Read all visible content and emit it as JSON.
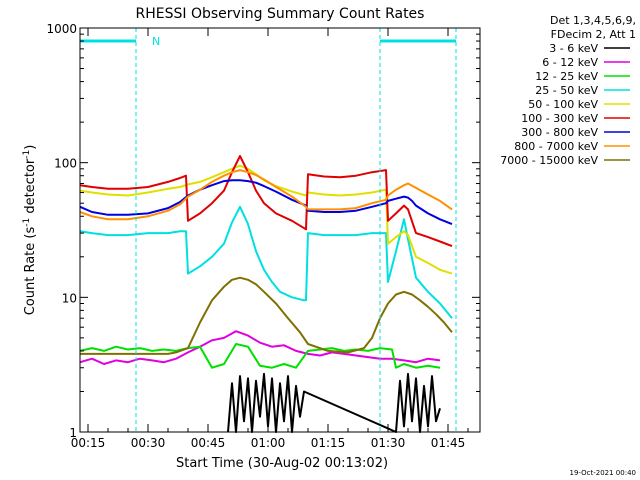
{
  "chart_data": {
    "type": "line",
    "title": "RHESSI Observing Summary Count Rates",
    "xlabel": "Start Time (30-Aug-02 00:13:02)",
    "ylabel_main": "Count Rate (s",
    "ylabel_sup1": "-1",
    "ylabel_mid": " detector",
    "ylabel_sup2": "-1",
    "ylabel_end": ")",
    "yscale": "log",
    "ylim": [
      1,
      1000
    ],
    "xlim": [
      "00:13",
      "01:53"
    ],
    "grid": false,
    "legend_position": "top-right outside",
    "x_ticks": [
      "00:15",
      "00:30",
      "00:45",
      "01:00",
      "01:15",
      "01:30",
      "01:45"
    ],
    "x_tick_minutes": [
      15,
      30,
      45,
      60,
      75,
      90,
      105
    ],
    "y_ticks": [
      "1",
      "10",
      "100",
      "1000"
    ],
    "y_tick_values": [
      1,
      10,
      100,
      1000
    ],
    "legend_header": [
      "Det 1,3,4,5,6,9,",
      "FDecim 2, Att 1"
    ],
    "flag_label": "N",
    "timestamp": "19-Oct-2021 00:40",
    "series": [
      {
        "name": "3 - 6 keV",
        "color": "#000000",
        "x": [
          50,
          51,
          52,
          53,
          54,
          55,
          56,
          57,
          58,
          59,
          60,
          61,
          62,
          63,
          64,
          65,
          66,
          67,
          68,
          69,
          92,
          93,
          94,
          95,
          96,
          97,
          98,
          99,
          100,
          101,
          102,
          103
        ],
        "y": [
          1,
          2.3,
          1,
          2.6,
          1.2,
          2.5,
          1,
          2.4,
          1.3,
          2.7,
          1.1,
          2.5,
          1,
          2.3,
          1.2,
          2.6,
          1,
          2.2,
          1.3,
          2,
          1,
          2.4,
          1.1,
          2.7,
          1.2,
          2.5,
          1,
          2.2,
          1.1,
          2.6,
          1.2,
          1.5
        ]
      },
      {
        "name": "6 - 12 keV",
        "color": "#e000e0",
        "x": [
          13,
          16,
          19,
          22,
          25,
          28,
          31,
          34,
          37,
          40,
          43,
          46,
          49,
          52,
          55,
          58,
          61,
          64,
          67,
          70,
          73,
          76,
          79,
          82,
          85,
          88,
          91,
          94,
          97,
          100,
          103
        ],
        "y": [
          3.3,
          3.5,
          3.2,
          3.4,
          3.3,
          3.5,
          3.4,
          3.3,
          3.5,
          3.9,
          4.3,
          4.8,
          5,
          5.6,
          5.2,
          4.6,
          4.3,
          4.4,
          4.0,
          3.8,
          3.7,
          3.9,
          3.8,
          3.7,
          3.6,
          3.5,
          3.5,
          3.4,
          3.3,
          3.5,
          3.4
        ]
      },
      {
        "name": "12 - 25 keV",
        "color": "#00e000",
        "x": [
          13,
          16,
          19,
          22,
          25,
          28,
          31,
          34,
          37,
          40,
          43,
          46,
          49,
          52,
          55,
          58,
          61,
          64,
          67,
          70,
          73,
          76,
          79,
          82,
          85,
          88,
          91,
          92,
          94,
          97,
          100,
          103
        ],
        "y": [
          4.0,
          4.2,
          4.0,
          4.3,
          4.1,
          4.2,
          4.0,
          4.1,
          4.0,
          4.2,
          4.3,
          3.0,
          3.2,
          4.5,
          4.3,
          3.1,
          3.0,
          3.2,
          3.0,
          4.0,
          4.1,
          4.2,
          4.0,
          4.1,
          4.0,
          4.2,
          4.1,
          3.0,
          3.2,
          3.0,
          3.1,
          3.0
        ]
      },
      {
        "name": "25 - 50 keV",
        "color": "#00e0e0",
        "x": [
          13,
          16,
          20,
          25,
          30,
          35,
          38,
          39.5,
          40,
          43,
          46,
          49,
          51,
          53,
          55,
          57,
          59,
          61,
          63,
          66,
          69,
          69.5,
          70,
          74,
          78,
          82,
          86,
          89,
          89.5,
          90,
          92,
          94,
          95,
          97,
          100,
          103,
          106
        ],
        "y": [
          31,
          30,
          29,
          29,
          30,
          30,
          31,
          31,
          15,
          17,
          20,
          25,
          36,
          47,
          35,
          22,
          16,
          13,
          11,
          10,
          9.5,
          9.5,
          30,
          29,
          29,
          29,
          30,
          30,
          30,
          13,
          22,
          38,
          27,
          14,
          11,
          9,
          7
        ]
      },
      {
        "name": "50 - 100 keV",
        "color": "#e0e000",
        "x": [
          13,
          16,
          20,
          25,
          30,
          35,
          38,
          40,
          43,
          46,
          49,
          51,
          53,
          55,
          57,
          59,
          62,
          66,
          69.5,
          70,
          74,
          78,
          82,
          86,
          89.5,
          90,
          92,
          94,
          95,
          97,
          100,
          103,
          106
        ],
        "y": [
          62,
          60,
          58,
          57,
          60,
          64,
          66,
          69,
          72,
          78,
          85,
          90,
          95,
          90,
          82,
          74,
          67,
          61,
          57,
          60,
          58,
          57,
          58,
          60,
          63,
          25,
          28,
          31,
          29,
          20,
          18,
          16,
          15
        ]
      },
      {
        "name": "100 - 300 keV",
        "color": "#e00000",
        "x": [
          13,
          16,
          20,
          25,
          30,
          35,
          38,
          39.5,
          40,
          43,
          46,
          49,
          51,
          53,
          55,
          57,
          59,
          62,
          66,
          69.5,
          70,
          74,
          78,
          82,
          86,
          89.5,
          90,
          92,
          94,
          95,
          97,
          100,
          103,
          106
        ],
        "y": [
          68,
          66,
          64,
          64,
          66,
          72,
          77,
          80,
          37,
          42,
          50,
          62,
          85,
          112,
          85,
          62,
          50,
          42,
          37,
          32,
          82,
          79,
          78,
          80,
          85,
          88,
          37,
          42,
          48,
          45,
          30,
          28,
          26,
          24
        ]
      },
      {
        "name": "300 - 800 keV",
        "color": "#0000e0",
        "x": [
          13,
          16,
          20,
          25,
          30,
          35,
          38,
          40,
          43,
          46,
          49,
          51,
          53,
          55,
          57,
          59,
          62,
          66,
          69.5,
          70,
          74,
          78,
          82,
          86,
          89.5,
          90,
          92,
          94,
          95,
          96,
          97,
          100,
          103,
          106
        ],
        "y": [
          47,
          43,
          41,
          41,
          42,
          46,
          51,
          57,
          63,
          68,
          73,
          74,
          74,
          73,
          71,
          67,
          61,
          53,
          48,
          44,
          43,
          43,
          44,
          47,
          50,
          52,
          54,
          56,
          55,
          52,
          48,
          42,
          38,
          35
        ]
      },
      {
        "name": "800 - 7000 keV",
        "color": "#ff9000",
        "x": [
          13,
          16,
          20,
          25,
          30,
          35,
          38,
          40,
          43,
          46,
          49,
          51,
          53,
          55,
          57,
          59,
          62,
          66,
          69.5,
          70,
          74,
          78,
          82,
          86,
          89.5,
          90,
          92,
          94,
          95,
          97,
          100,
          103,
          106
        ],
        "y": [
          43,
          40,
          38,
          38,
          40,
          44,
          49,
          56,
          63,
          72,
          80,
          85,
          88,
          85,
          81,
          75,
          66,
          56,
          47,
          45,
          45,
          45,
          46,
          50,
          53,
          57,
          63,
          68,
          70,
          65,
          58,
          52,
          45
        ]
      },
      {
        "name": "7000 - 15000 keV",
        "color": "#807000",
        "x": [
          13,
          20,
          28,
          35,
          37,
          40,
          43,
          46,
          49,
          51,
          53,
          55,
          57,
          59,
          62,
          65,
          68,
          70,
          75,
          80,
          84,
          86,
          88,
          90,
          92,
          94,
          96,
          98,
          100,
          102,
          104,
          106
        ],
        "y": [
          3.8,
          3.8,
          3.8,
          3.8,
          3.9,
          4.2,
          6.5,
          9.5,
          12,
          13.5,
          14,
          13.5,
          12.5,
          11,
          9,
          7,
          5.5,
          4.5,
          4.0,
          3.9,
          4.2,
          5.0,
          7.0,
          9.0,
          10.5,
          11,
          10.5,
          9.5,
          8.5,
          7.5,
          6.5,
          5.5
        ]
      }
    ],
    "attenuator_segments": [
      {
        "x": [
          13,
          27
        ],
        "y": 800
      },
      {
        "x": [
          88,
          107
        ],
        "y": 800
      }
    ],
    "attenuator_markers": [
      13,
      27,
      88,
      107
    ]
  }
}
